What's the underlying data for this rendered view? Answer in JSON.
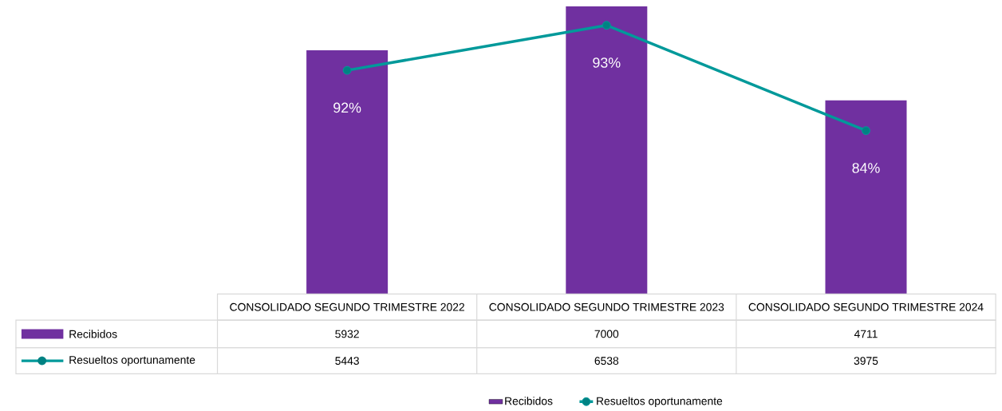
{
  "chart_data": {
    "type": "bar",
    "categories": [
      "CONSOLIDADO SEGUNDO TRIMESTRE 2022",
      "CONSOLIDADO SEGUNDO TRIMESTRE 2023",
      "CONSOLIDADO SEGUNDO TRIMESTRE 2024"
    ],
    "series": [
      {
        "name": "Recibidos",
        "color": "#7030a0",
        "values": [
          5932,
          7000,
          4711
        ],
        "value_labels": [
          "5932",
          "7000",
          "4711"
        ]
      },
      {
        "name": "Resueltos oportunamente",
        "type": "line",
        "color": "#00999a",
        "marker": "circle",
        "values": [
          5443,
          6538,
          3975
        ],
        "value_labels": [
          "5443",
          "6538",
          "3975"
        ]
      }
    ],
    "annotations": [
      {
        "text": "92%",
        "x": "CONSOLIDADO SEGUNDO TRIMESTRE 2022",
        "y": 5443
      },
      {
        "text": "93%",
        "x": "CONSOLIDADO SEGUNDO TRIMESTRE 2023",
        "y": 6538
      },
      {
        "text": "84%",
        "x": "CONSOLIDADO SEGUNDO TRIMESTRE 2024",
        "y": 3975
      }
    ],
    "ylim": [
      0,
      7000
    ],
    "legend": "bottom"
  }
}
